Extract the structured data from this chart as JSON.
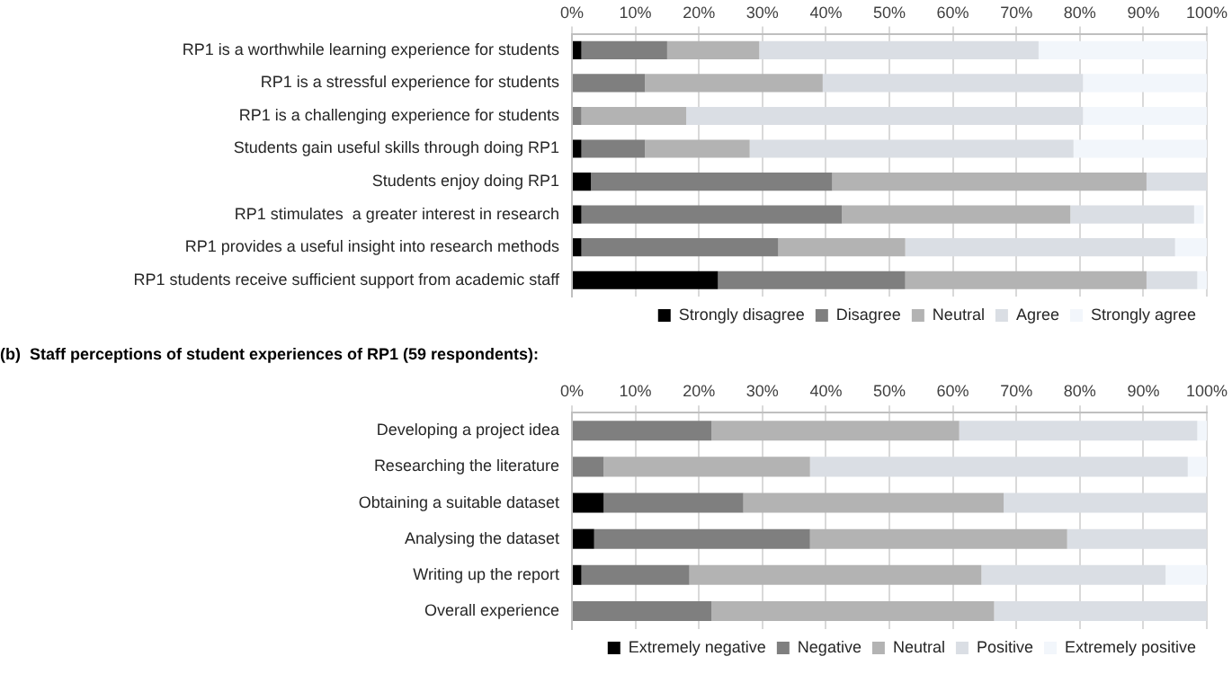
{
  "chart_data": [
    {
      "type": "bar",
      "orientation": "horizontal",
      "stacked": true,
      "categories": [
        "RP1 is a worthwhile learning experience for students",
        "RP1 is a stressful experience for students",
        "RP1 is a challenging experience for students",
        "Students gain useful skills through doing RP1",
        "Students enjoy doing RP1",
        "RP1 stimulates  a greater interest in research",
        "RP1 provides a useful insight into research methods",
        "RP1 students receive sufficient support from academic staff"
      ],
      "series": [
        {
          "name": "Strongly disagree",
          "color": "#000000",
          "values": [
            1.5,
            0,
            0,
            1.5,
            3,
            1.5,
            1.5,
            23
          ]
        },
        {
          "name": "Disagree",
          "color": "#7f7f7f",
          "values": [
            13.5,
            11.5,
            1.5,
            10,
            38,
            41,
            31,
            29.5
          ]
        },
        {
          "name": "Neutral",
          "color": "#b3b3b3",
          "values": [
            14.5,
            28,
            16.5,
            16.5,
            49.5,
            36,
            20,
            38
          ]
        },
        {
          "name": "Agree",
          "color": "#dadee4",
          "values": [
            44,
            41,
            62.5,
            51,
            9.5,
            19.5,
            42.5,
            8
          ]
        },
        {
          "name": "Strongly agree",
          "color": "#f2f6fb",
          "values": [
            26.5,
            19.5,
            19.5,
            21,
            0,
            1.5,
            5,
            1.5
          ]
        }
      ],
      "xlim": [
        0,
        100
      ],
      "xticks": [
        {
          "value": 0,
          "label": "0%"
        },
        {
          "value": 10,
          "label": "10%"
        },
        {
          "value": 20,
          "label": "20%"
        },
        {
          "value": 30,
          "label": "30%"
        },
        {
          "value": 40,
          "label": "40%"
        },
        {
          "value": 50,
          "label": "50%"
        },
        {
          "value": 60,
          "label": "60%"
        },
        {
          "value": 70,
          "label": "70%"
        },
        {
          "value": 80,
          "label": "80%"
        },
        {
          "value": 90,
          "label": "90%"
        },
        {
          "value": 100,
          "label": "100%"
        }
      ],
      "grid": "x",
      "legend": "bottom"
    },
    {
      "type": "bar",
      "orientation": "horizontal",
      "stacked": true,
      "title": "(b)  Staff perceptions of student experiences of RP1 (59 respondents):",
      "categories": [
        "Developing a project idea",
        "Researching the literature",
        "Obtaining a suitable dataset",
        "Analysing the dataset",
        "Writing up the report",
        "Overall experience"
      ],
      "series": [
        {
          "name": "Extremely negative",
          "color": "#000000",
          "values": [
            0,
            0,
            5,
            3.5,
            1.5,
            0
          ]
        },
        {
          "name": "Negative",
          "color": "#7f7f7f",
          "values": [
            22,
            5,
            22,
            34,
            17,
            22
          ]
        },
        {
          "name": "Neutral",
          "color": "#b3b3b3",
          "values": [
            39,
            32.5,
            41,
            40.5,
            46,
            44.5
          ]
        },
        {
          "name": "Positive",
          "color": "#dadee4",
          "values": [
            37.5,
            59.5,
            32,
            22,
            29,
            33.5
          ]
        },
        {
          "name": "Extremely positive",
          "color": "#f2f6fb",
          "values": [
            1.5,
            3,
            0,
            0,
            6.5,
            0
          ]
        }
      ],
      "xlim": [
        0,
        100
      ],
      "xticks": [
        {
          "value": 0,
          "label": "0%"
        },
        {
          "value": 10,
          "label": "10%"
        },
        {
          "value": 20,
          "label": "20%"
        },
        {
          "value": 30,
          "label": "30%"
        },
        {
          "value": 40,
          "label": "40%"
        },
        {
          "value": 50,
          "label": "50%"
        },
        {
          "value": 60,
          "label": "60%"
        },
        {
          "value": 70,
          "label": "70%"
        },
        {
          "value": 80,
          "label": "80%"
        },
        {
          "value": 90,
          "label": "90%"
        },
        {
          "value": 100,
          "label": "100%"
        }
      ],
      "grid": "x",
      "legend": "bottom"
    }
  ]
}
